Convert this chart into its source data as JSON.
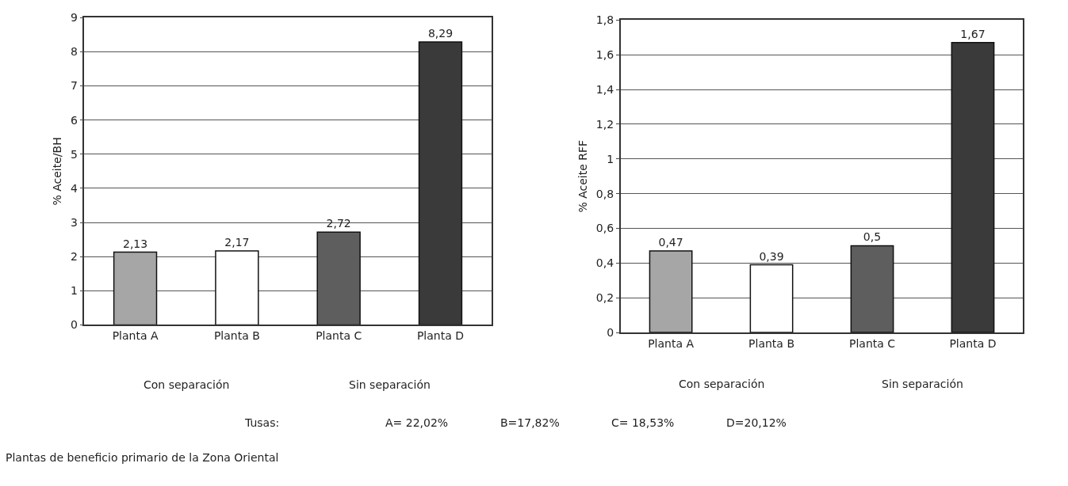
{
  "chart_data": [
    {
      "type": "bar",
      "ylabel": "% Aceite/BH",
      "categories": [
        "Planta A",
        "Planta B",
        "Planta C",
        "Planta D"
      ],
      "values": [
        2.13,
        2.17,
        2.72,
        8.29
      ],
      "value_labels": [
        "2,13",
        "2,17",
        "2,72",
        "8,29"
      ],
      "colors": [
        "#a6a6a6",
        "#ffffff",
        "#5e5e5e",
        "#3a3a3a"
      ],
      "ylim": [
        0,
        9
      ],
      "yticks": [
        0,
        1,
        2,
        3,
        4,
        5,
        6,
        7,
        8,
        9
      ],
      "grid": "y",
      "annotations": [
        "Con separación",
        "Sin separación",
        "Tusas:",
        "A= 22,02%",
        "B=17,82%",
        "C= 18,53%",
        "D=20,12%",
        "Plantas de beneficio primario de la Zona Oriental"
      ]
    },
    {
      "type": "bar",
      "ylabel": "% Aceite RFF",
      "categories": [
        "Planta A",
        "Planta B",
        "Planta C",
        "Planta D"
      ],
      "values": [
        0.47,
        0.39,
        0.5,
        1.67
      ],
      "value_labels": [
        "0,47",
        "0,39",
        "0,5",
        "1,67"
      ],
      "colors": [
        "#a6a6a6",
        "#ffffff",
        "#5e5e5e",
        "#3a3a3a"
      ],
      "ylim": [
        0,
        1.8
      ],
      "yticks": [
        0,
        {
          "value": 0.2,
          "label": "0,2"
        },
        {
          "value": 0.4,
          "label": "0,4"
        },
        {
          "value": 0.6,
          "label": "0,6"
        },
        {
          "value": 0.8,
          "label": "0,8"
        },
        1,
        {
          "value": 1.2,
          "label": "1,2"
        },
        {
          "value": 1.4,
          "label": "1,4"
        },
        {
          "value": 1.6,
          "label": "1,6"
        },
        {
          "value": 1.8,
          "label": "1,8"
        }
      ],
      "grid": "y",
      "annotations": [
        "Con separación",
        "Sin separación"
      ]
    }
  ]
}
